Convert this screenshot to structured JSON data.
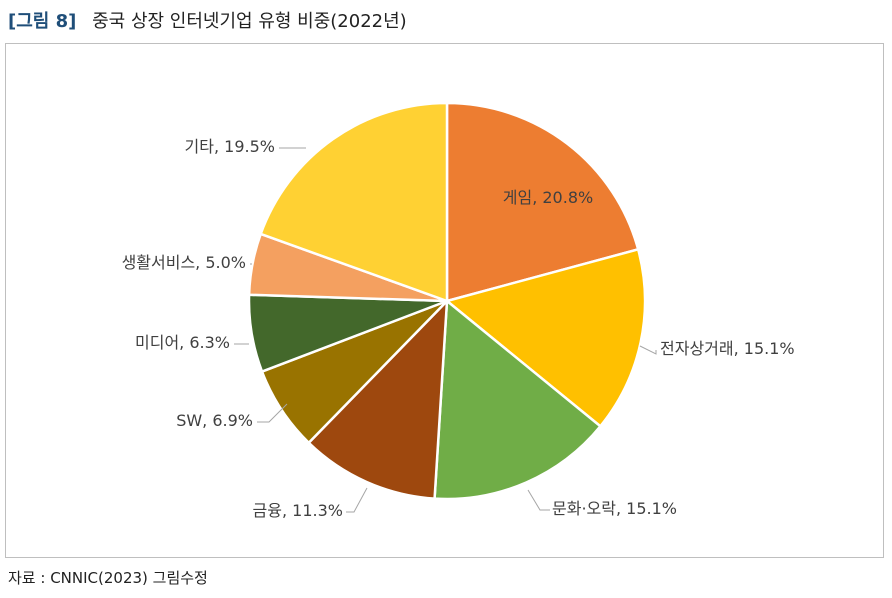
{
  "figure": {
    "number": "[그림 8]",
    "title": "중국 상장 인터넷기업 유형 비중(2022년)"
  },
  "source": "자료 : CNNIC(2023) 그림수정",
  "chart_data": {
    "type": "pie",
    "title": "",
    "unit": "%",
    "start_angle": "top (12 o'clock)",
    "direction": "clockwise",
    "legend": "none",
    "slices": [
      {
        "label": "게임",
        "value": 20.8,
        "display": "게임, 20.8%",
        "color": "#ED7D31",
        "label_position": "inside"
      },
      {
        "label": "전자상거래",
        "value": 15.1,
        "display": "전자상거래, 15.1%",
        "color": "#FFC000",
        "label_position": "outside"
      },
      {
        "label": "문화·오락",
        "value": 15.1,
        "display": "문화·오락, 15.1%",
        "color": "#70AD47",
        "label_position": "outside"
      },
      {
        "label": "금융",
        "value": 11.3,
        "display": "금융, 11.3%",
        "color": "#9E480E",
        "label_position": "outside"
      },
      {
        "label": "SW",
        "value": 6.9,
        "display": "SW, 6.9%",
        "color": "#997300",
        "label_position": "outside"
      },
      {
        "label": "미디어",
        "value": 6.3,
        "display": "미디어, 6.3%",
        "color": "#43682B",
        "label_position": "outside"
      },
      {
        "label": "생활서비스",
        "value": 5.0,
        "display": "생활서비스, 5.0%",
        "color": "#F4A060",
        "label_position": "outside"
      },
      {
        "label": "기타",
        "value": 19.5,
        "display": "기타, 19.5%",
        "color": "#FFD133",
        "label_position": "outside"
      }
    ]
  }
}
